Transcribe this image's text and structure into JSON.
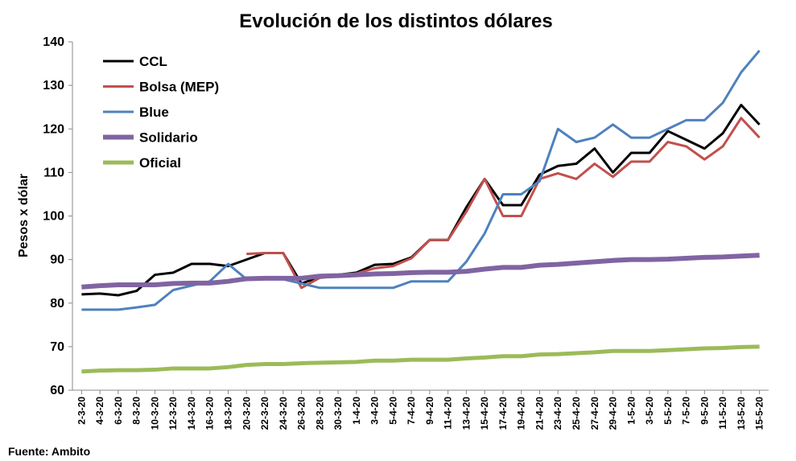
{
  "chart_data": {
    "type": "line",
    "title": "Evolución de los distintos dólares",
    "y_label": "Pesos x dólar",
    "source": "Fuente: Ambito",
    "categories": [
      "2-3-20",
      "4-3-20",
      "6-3-20",
      "8-3-20",
      "10-3-20",
      "12-3-20",
      "14-3-20",
      "16-3-20",
      "18-3-20",
      "20-3-20",
      "22-3-20",
      "24-3-20",
      "26-3-20",
      "28-3-20",
      "30-3-20",
      "1-4-20",
      "3-4-20",
      "5-4-20",
      "7-4-20",
      "9-4-20",
      "11-4-20",
      "13-4-20",
      "15-4-20",
      "17-4-20",
      "19-4-20",
      "21-4-20",
      "23-4-20",
      "25-4-20",
      "27-4-20",
      "29-4-20",
      "1-5-20",
      "3-5-20",
      "5-5-20",
      "7-5-20",
      "9-5-20",
      "11-5-20",
      "13-5-20",
      "15-5-20"
    ],
    "series": [
      {
        "name": "CCL",
        "color": "#000000",
        "values": [
          82,
          82.2,
          81.8,
          82.8,
          86.5,
          87,
          89,
          89,
          88.5,
          90,
          91.5,
          91.5,
          84.5,
          86,
          86.5,
          87,
          88.8,
          89,
          90.5,
          94.5,
          94.5,
          102,
          108.5,
          102.5,
          102.5,
          109.5,
          111.5,
          112,
          115.5,
          110,
          114.5,
          114.5,
          119.5,
          117.5,
          115.5,
          119,
          125.5,
          121
        ]
      },
      {
        "name": "Bolsa (MEP)",
        "color": "#c0504d",
        "values": [
          null,
          null,
          null,
          null,
          null,
          null,
          null,
          null,
          null,
          91.3,
          91.5,
          91.5,
          83.5,
          85.8,
          86.2,
          86.8,
          88,
          88.5,
          90.3,
          94.5,
          94.5,
          101,
          108.5,
          100,
          100,
          108.5,
          109.8,
          108.5,
          112,
          109,
          112.5,
          112.5,
          117,
          116,
          113,
          116,
          122.5,
          118
        ]
      },
      {
        "name": "Blue",
        "color": "#4f81bd",
        "values": [
          78.5,
          78.5,
          78.5,
          79,
          79.6,
          83,
          84,
          85,
          89,
          85.5,
          85.5,
          85.5,
          84.5,
          83.5,
          83.5,
          83.5,
          83.5,
          83.5,
          85,
          85,
          85,
          89.5,
          96,
          105,
          105,
          108,
          120,
          117,
          118,
          121,
          118,
          118,
          120,
          122,
          122,
          126,
          133,
          138
        ]
      },
      {
        "name": "Solidario",
        "color": "#8064a2",
        "values": [
          83.7,
          84,
          84.2,
          84.2,
          84.2,
          84.5,
          84.6,
          84.6,
          85,
          85.6,
          85.7,
          85.7,
          85.7,
          86.2,
          86.3,
          86.5,
          86.7,
          86.8,
          87,
          87.1,
          87.1,
          87.3,
          87.8,
          88.2,
          88.2,
          88.7,
          88.9,
          89.2,
          89.5,
          89.8,
          90,
          90,
          90.1,
          90.3,
          90.5,
          90.6,
          90.8,
          91
        ]
      },
      {
        "name": "Oficial",
        "color": "#9bbb59",
        "values": [
          64.3,
          64.5,
          64.6,
          64.6,
          64.7,
          65,
          65,
          65,
          65.3,
          65.8,
          66,
          66,
          66.2,
          66.3,
          66.4,
          66.5,
          66.8,
          66.8,
          67,
          67,
          67,
          67.3,
          67.5,
          67.8,
          67.8,
          68.2,
          68.3,
          68.5,
          68.7,
          69,
          69,
          69,
          69.2,
          69.4,
          69.6,
          69.7,
          69.9,
          70
        ]
      }
    ],
    "ylim": [
      60,
      140
    ],
    "yticks": [
      60,
      70,
      80,
      90,
      100,
      110,
      120,
      130,
      140
    ],
    "legend": "upper-left",
    "grid": false
  }
}
